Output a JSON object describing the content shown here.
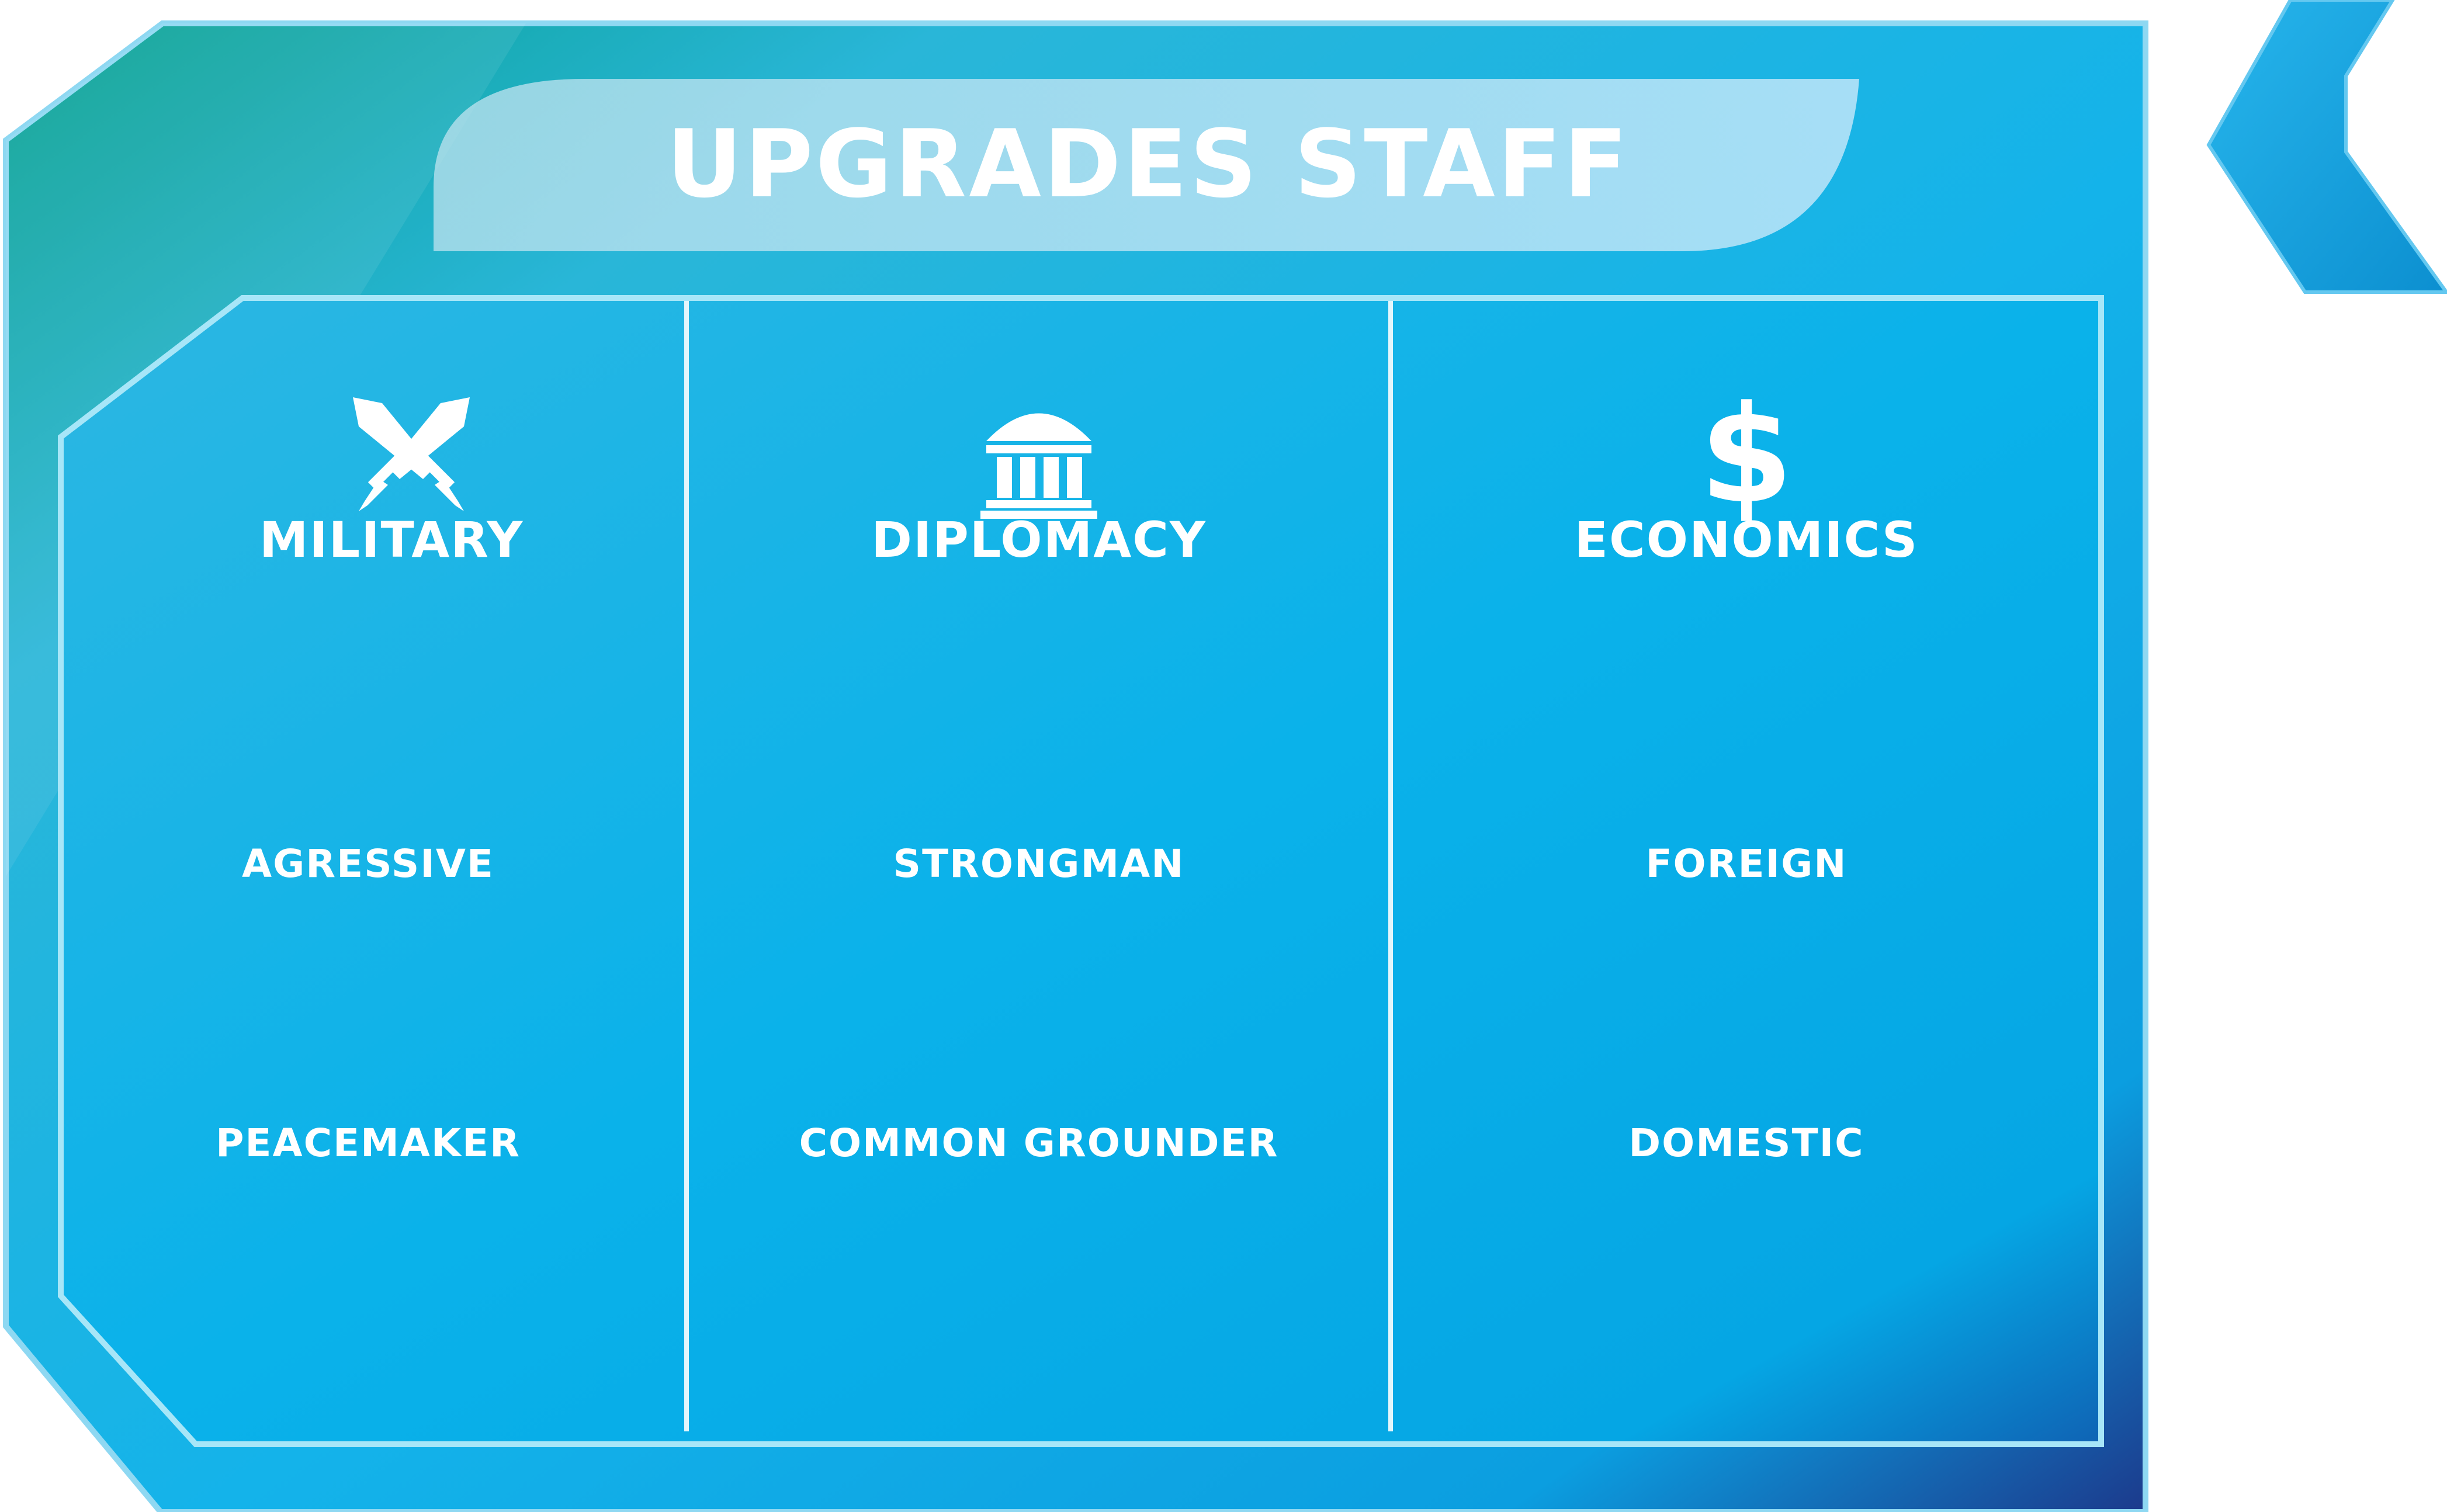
{
  "panel": {
    "title": "UPGRADES STAFF"
  },
  "columns": [
    {
      "icon": "crossed-swords-icon",
      "heading": "MILITARY",
      "options": [
        "AGRESSIVE",
        "PEACEMAKER"
      ]
    },
    {
      "icon": "government-building-icon",
      "heading": "DIPLOMACY",
      "options": [
        "STRONGMAN",
        "COMMON GROUNDER"
      ]
    },
    {
      "icon": "dollar-sign-icon",
      "icon_glyph": "$",
      "heading": "ECONOMICS",
      "options": [
        "FOREIGN",
        "DOMESTIC"
      ]
    }
  ],
  "back_button": {
    "icon": "chevron-left-icon"
  },
  "colors": {
    "panel_teal": "#0aa39b",
    "panel_cyan": "#13b6ea",
    "panel_deep_blue": "#1c3a8c",
    "text": "#ffffff"
  }
}
